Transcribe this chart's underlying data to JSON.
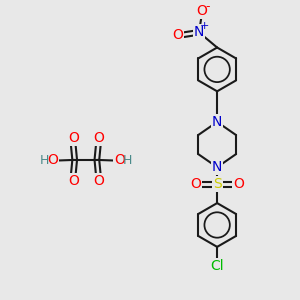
{
  "bg_color": "#e8e8e8",
  "bond_color": "#1a1a1a",
  "bond_width": 1.5,
  "atom_colors": {
    "O": "#ff0000",
    "N": "#0000cc",
    "S": "#cccc00",
    "Cl": "#00bb00",
    "H": "#4a8a8a",
    "C": "#1a1a1a"
  },
  "font_size": 9,
  "figsize": [
    3.0,
    3.0
  ],
  "dpi": 100
}
